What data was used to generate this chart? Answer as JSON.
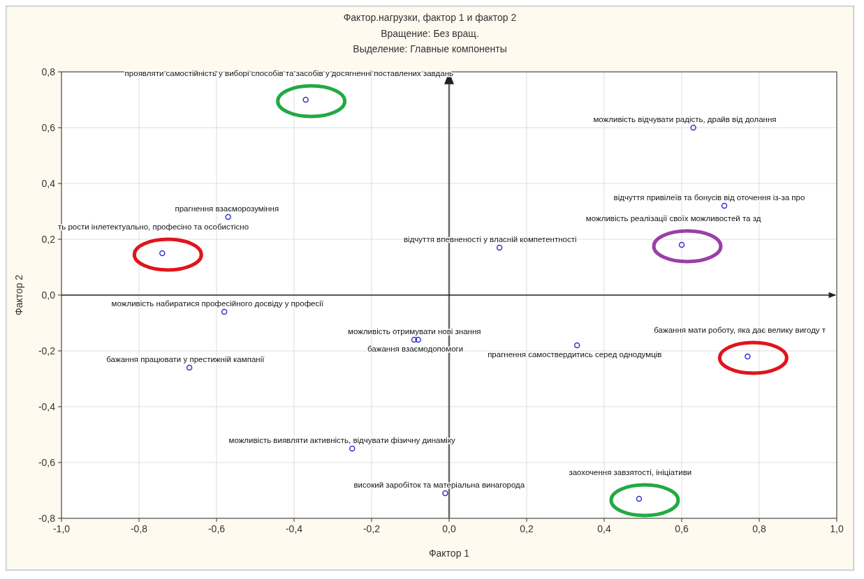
{
  "chart_data": {
    "type": "scatter",
    "title": "Фактор.нагрузки, фактор 1 и фактор   2",
    "subtitle": "Вращение: Без вращ.\nВыделение: Главные компоненты",
    "xlabel": "Фактор 1",
    "ylabel": "Фактор 2",
    "x": [
      -0.37,
      0.63,
      0.71,
      -0.57,
      -0.74,
      0.13,
      0.6,
      -0.58,
      -0.08,
      -0.09,
      0.33,
      0.77,
      -0.67,
      -0.25,
      -0.01,
      0.49
    ],
    "series": [
      {
        "color": "#3333cc",
        "values": [
          0.7,
          0.6,
          0.32,
          0.28,
          0.15,
          0.17,
          0.18,
          -0.06,
          -0.16,
          -0.16,
          -0.18,
          -0.22,
          -0.26,
          -0.55,
          -0.71,
          -0.73
        ]
      }
    ],
    "annotations": [
      {
        "text": "проявляти самостійність у виборі способів та засобів у досягненні поставлених завдань",
        "x": -0.37,
        "y": 0.7
      },
      {
        "text": "можливість відчувати радість, драйв від долання",
        "x": 0.63,
        "y": 0.6
      },
      {
        "text": "відчуття привілеїв та бонусів від оточення із-за про",
        "x": 0.71,
        "y": 0.32
      },
      {
        "text": "прагнення взаєморозуміння",
        "x": -0.57,
        "y": 0.28
      },
      {
        "text": "ть рости інлетектуально, професіно та особистісно",
        "x": -0.74,
        "y": 0.15
      },
      {
        "text": "відчуття впевненості у власній компетентності",
        "x": 0.13,
        "y": 0.17
      },
      {
        "text": "можливість реалізації своїх можливостей та зд",
        "x": 0.6,
        "y": 0.18
      },
      {
        "text": "можливість набиратися професійного досвіду у професії",
        "x": -0.58,
        "y": -0.06
      },
      {
        "text": "можливість отримувати нові знання",
        "x": -0.08,
        "y": -0.16
      },
      {
        "text": "бажання взаємодопомоги",
        "x": -0.09,
        "y": -0.16
      },
      {
        "text": "прагнення самоствердитись серед однодумців",
        "x": 0.33,
        "y": -0.18
      },
      {
        "text": "бажання мати роботу, яка дає велику вигоду т",
        "x": 0.77,
        "y": -0.22
      },
      {
        "text": "бажання працювати у престижній кампанії",
        "x": -0.67,
        "y": -0.26
      },
      {
        "text": "можливість виявляти активність, відчувати фізичну динаміку",
        "x": -0.25,
        "y": -0.55
      },
      {
        "text": "високий заробіток та матеріальна винагорода",
        "x": -0.01,
        "y": -0.71
      },
      {
        "text": "заохочення завзятості, ініціативи",
        "x": 0.49,
        "y": -0.73
      }
    ],
    "ref_lines": [
      {
        "axis": "x",
        "value": 0,
        "color": "#666666"
      },
      {
        "axis": "y",
        "value": 0,
        "color": "#222222"
      }
    ],
    "xlim": [
      -1,
      1
    ],
    "ylim": [
      -0.8,
      0.8
    ],
    "xticks": [
      {
        "value": -1,
        "label": "-1,0"
      },
      {
        "value": -0.8,
        "label": "-0,8"
      },
      {
        "value": -0.6,
        "label": "-0,6"
      },
      {
        "value": -0.4,
        "label": "-0,4"
      },
      {
        "value": -0.2,
        "label": "-0,2"
      },
      {
        "value": 0,
        "label": "0,0"
      },
      {
        "value": 0.2,
        "label": "0,2"
      },
      {
        "value": 0.4,
        "label": "0,4"
      },
      {
        "value": 0.6,
        "label": "0,6"
      },
      {
        "value": 0.8,
        "label": "0,8"
      },
      {
        "value": 1,
        "label": "1,0"
      }
    ],
    "yticks": [
      {
        "value": -0.8,
        "label": "-0,8"
      },
      {
        "value": -0.6,
        "label": "-0,6"
      },
      {
        "value": -0.4,
        "label": "-0,4"
      },
      {
        "value": -0.2,
        "label": "-0,2"
      },
      {
        "value": 0,
        "label": "0,0"
      },
      {
        "value": 0.2,
        "label": "0,2"
      },
      {
        "value": 0.4,
        "label": "0,4"
      },
      {
        "value": 0.6,
        "label": "0,6"
      },
      {
        "value": 0.8,
        "label": "0,8"
      }
    ],
    "grid": true,
    "marker": "circle"
  }
}
